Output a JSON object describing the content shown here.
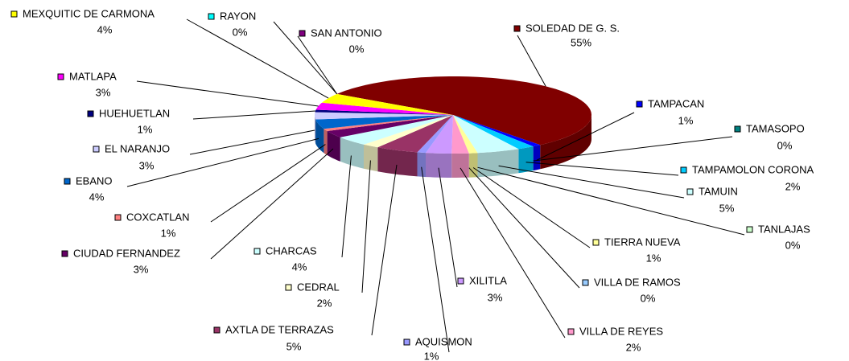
{
  "chart_data": {
    "type": "pie",
    "categories": [
      "SOLEDAD DE G. S.",
      "TAMPACAN",
      "TAMASOPO",
      "TAMPAMOLON CORONA",
      "TAMUIN",
      "TANLAJAS",
      "TIERRA NUEVA",
      "VILLA DE RAMOS",
      "VILLA DE REYES",
      "XILITLA",
      "AQUISMON",
      "AXTLA DE TERRAZAS",
      "CEDRAL",
      "CHARCAS",
      "CIUDAD FERNANDEZ",
      "COXCATLAN",
      "EBANO",
      "EL NARANJO",
      "HUEHUETLAN",
      "MATLAPA",
      "MEXQUITIC DE CARMONA",
      "RAYON",
      "SAN ANTONIO"
    ],
    "values": [
      55,
      1,
      0,
      2,
      5,
      0,
      1,
      0,
      2,
      3,
      1,
      5,
      2,
      4,
      3,
      1,
      4,
      3,
      1,
      3,
      4,
      0,
      0
    ],
    "value_labels": [
      "55%",
      "1%",
      "0%",
      "2%",
      "5%",
      "0%",
      "1%",
      "0%",
      "2%",
      "3%",
      "1%",
      "5%",
      "2%",
      "4%",
      "3%",
      "1%",
      "4%",
      "3%",
      "1%",
      "3%",
      "4%",
      "0%",
      "0%"
    ],
    "colors": [
      "#800000",
      "#0000ff",
      "#008080",
      "#00ccff",
      "#ccffff",
      "#ccffcc",
      "#ffff99",
      "#99ccff",
      "#ff99cc",
      "#cc99ff",
      "#9999ff",
      "#993366",
      "#ffffcc",
      "#ccffff",
      "#660066",
      "#ff8080",
      "#0066cc",
      "#ccccff",
      "#000080",
      "#ff00ff",
      "#ffff00",
      "#00ffff",
      "#800080"
    ]
  }
}
